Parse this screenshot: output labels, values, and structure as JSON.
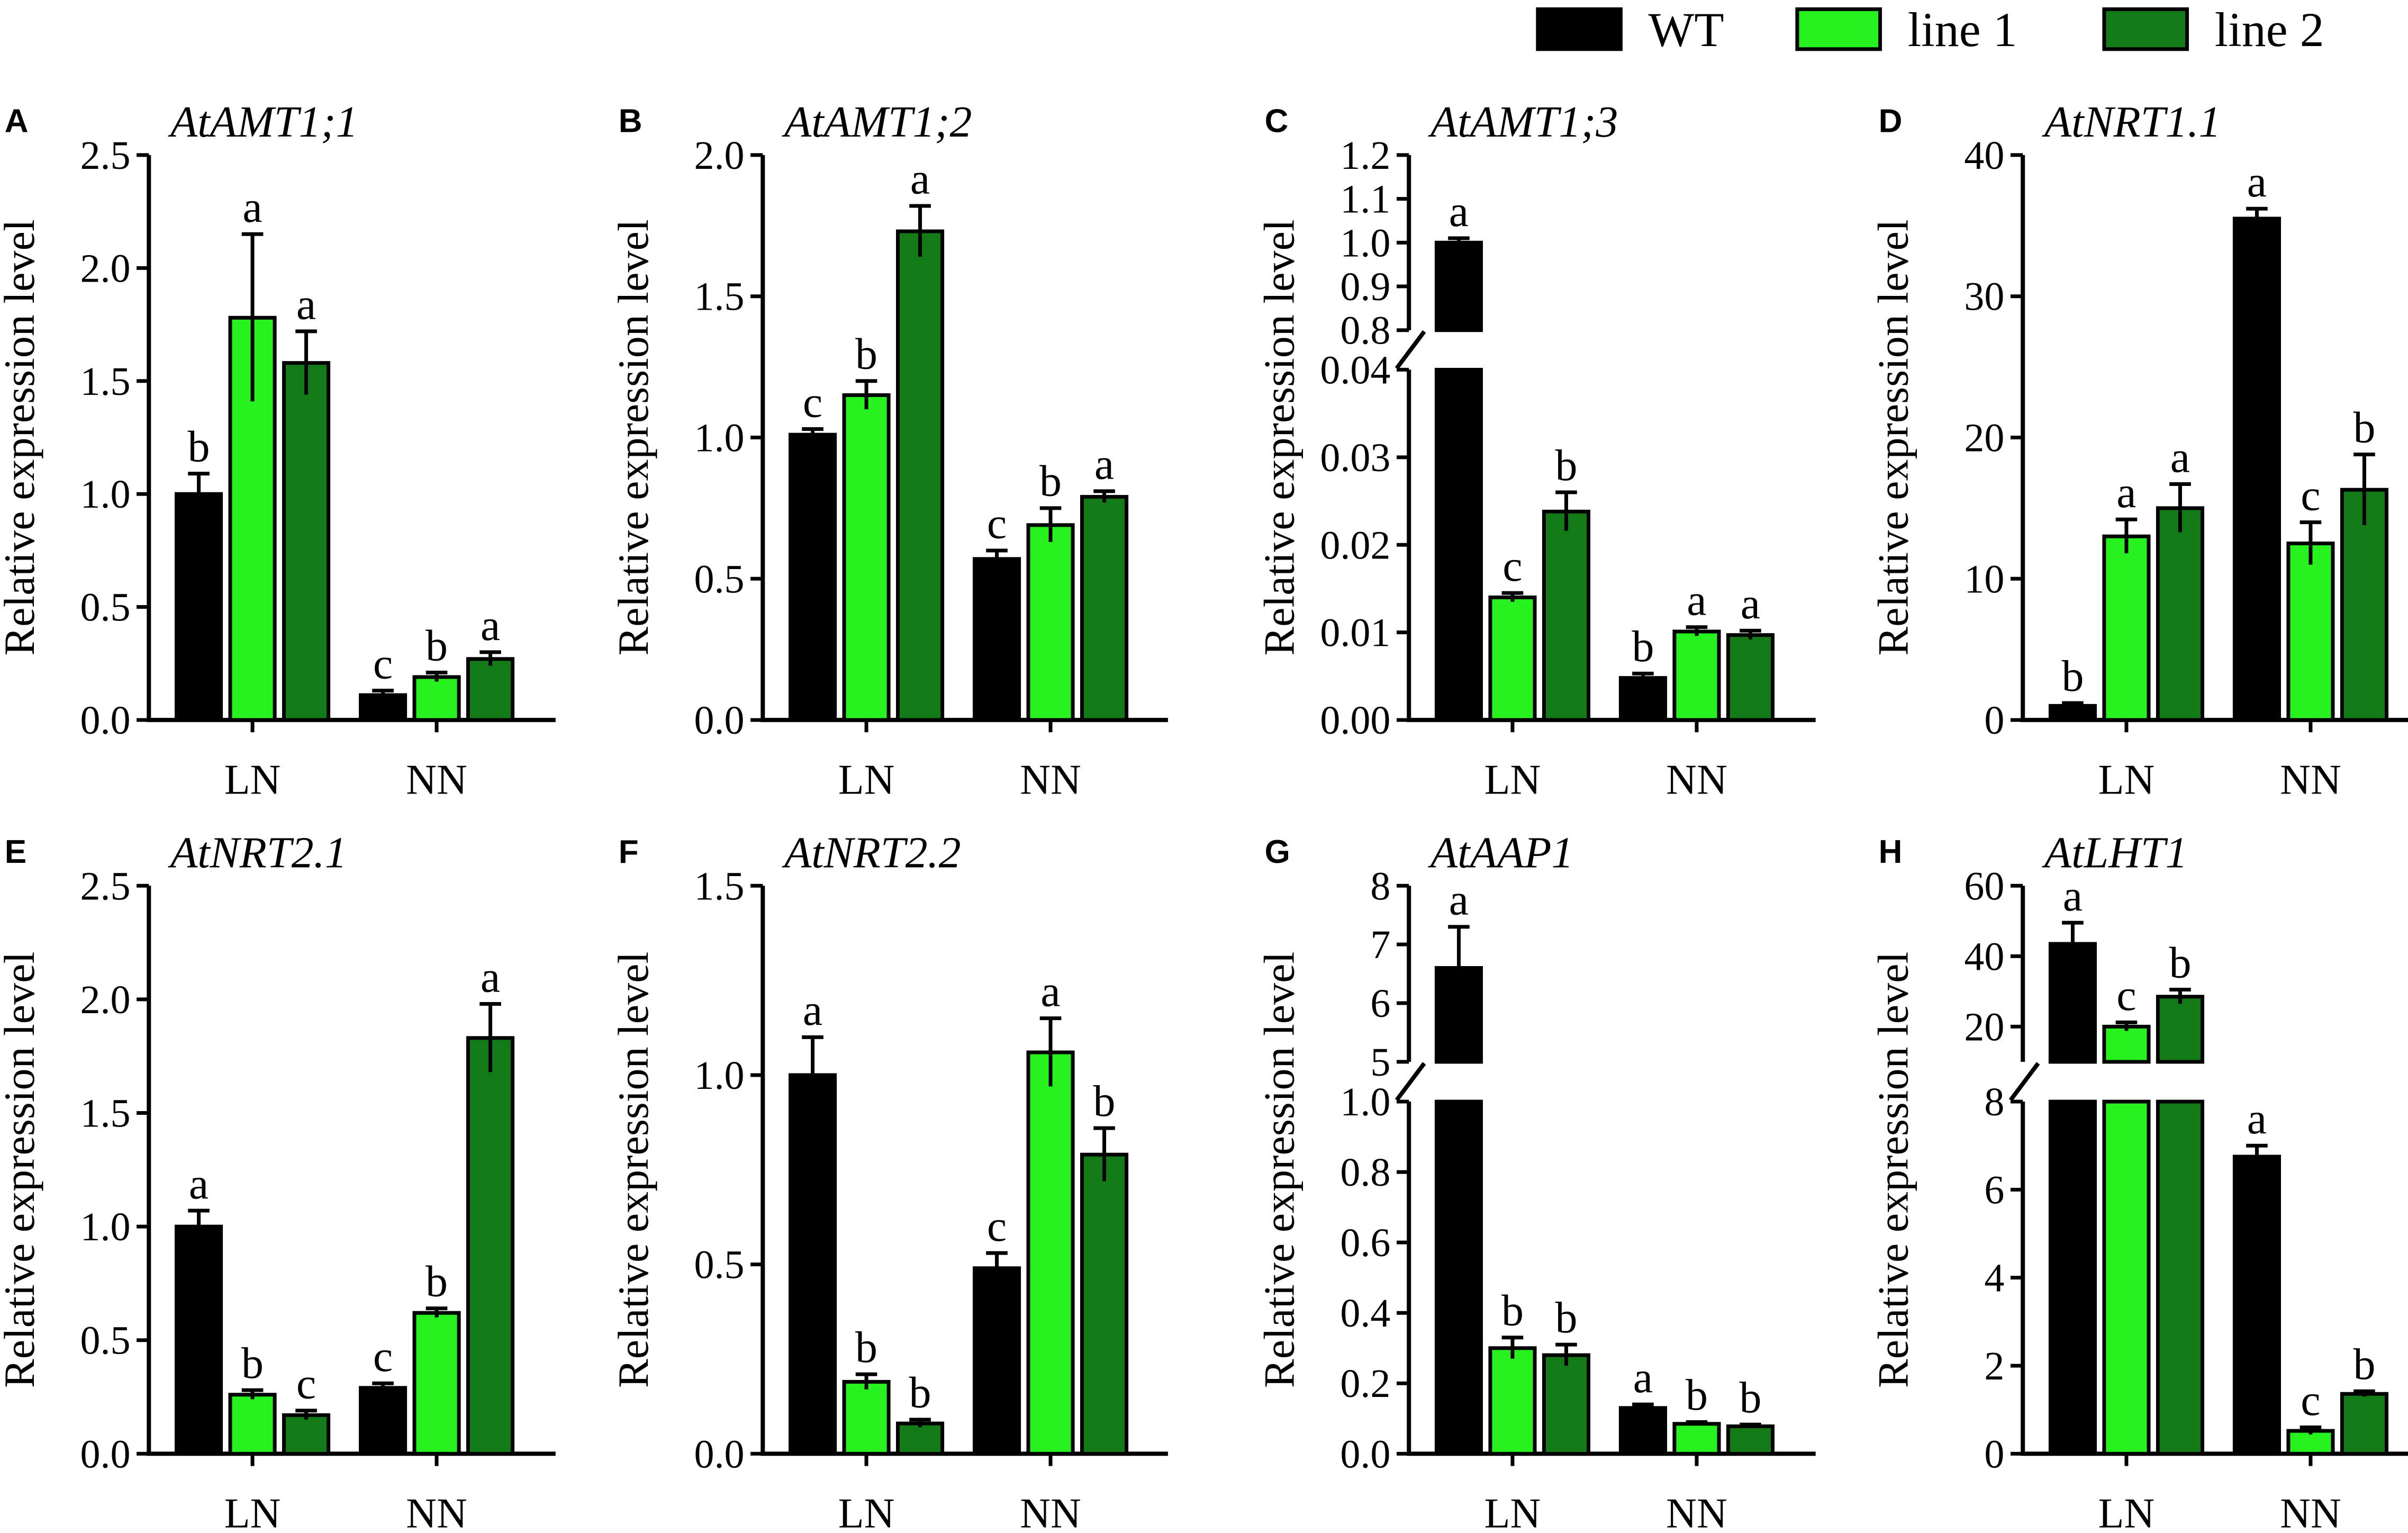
{
  "legend": [
    {
      "label": "WT",
      "color": "#000000"
    },
    {
      "label": "line 1",
      "color": "#27f21f"
    },
    {
      "label": "line 2",
      "color": "#137a18"
    }
  ],
  "chart_data": [
    {
      "panel": "A",
      "type": "bar",
      "title": "AtAMT1;1",
      "ylabel": "Relative expression level",
      "categories": [
        "LN",
        "NN"
      ],
      "ylim": [
        0,
        2.5
      ],
      "yticks": [
        "0.0",
        "0.5",
        "1.0",
        "1.5",
        "2.0",
        "2.5"
      ],
      "series": [
        {
          "name": "WT",
          "values": [
            1.0,
            0.11
          ],
          "errors": [
            0.09,
            0.02
          ],
          "letters": [
            "b",
            "c"
          ]
        },
        {
          "name": "line 1",
          "values": [
            1.78,
            0.19
          ],
          "errors": [
            0.37,
            0.02
          ],
          "letters": [
            "a",
            "b"
          ]
        },
        {
          "name": "line 2",
          "values": [
            1.58,
            0.27
          ],
          "errors": [
            0.14,
            0.03
          ],
          "letters": [
            "a",
            "a"
          ]
        }
      ]
    },
    {
      "panel": "B",
      "type": "bar",
      "title": "AtAMT1;2",
      "ylabel": "Relative expression level",
      "categories": [
        "LN",
        "NN"
      ],
      "ylim": [
        0,
        2.0
      ],
      "yticks": [
        "0.0",
        "0.5",
        "1.0",
        "1.5",
        "2.0"
      ],
      "series": [
        {
          "name": "WT",
          "values": [
            1.01,
            0.57
          ],
          "errors": [
            0.02,
            0.03
          ],
          "letters": [
            "c",
            "c"
          ]
        },
        {
          "name": "line 1",
          "values": [
            1.15,
            0.69
          ],
          "errors": [
            0.05,
            0.06
          ],
          "letters": [
            "b",
            "b"
          ]
        },
        {
          "name": "line 2",
          "values": [
            1.73,
            0.79
          ],
          "errors": [
            0.09,
            0.02
          ],
          "letters": [
            "a",
            "a"
          ]
        }
      ]
    },
    {
      "panel": "C",
      "type": "bar",
      "title": "AtAMT1;3",
      "ylabel": "Relative expression level",
      "categories": [
        "LN",
        "NN"
      ],
      "ylim": [
        0,
        1.2
      ],
      "axis_break": [
        0.04,
        0.8
      ],
      "yticks": [
        "0.00",
        "0.01",
        "0.02",
        "0.03",
        "0.04"
      ],
      "yticks_upper": [
        "0.8",
        "0.9",
        "1.0",
        "1.1",
        "1.2"
      ],
      "series": [
        {
          "name": "WT",
          "values": [
            1.0,
            0.0048
          ],
          "errors": [
            0.01,
            0.0005
          ],
          "letters": [
            "a",
            "b"
          ]
        },
        {
          "name": "line 1",
          "values": [
            0.014,
            0.0101
          ],
          "errors": [
            0.0005,
            0.0005
          ],
          "letters": [
            "c",
            "a"
          ]
        },
        {
          "name": "line 2",
          "values": [
            0.0238,
            0.0097
          ],
          "errors": [
            0.0022,
            0.0005
          ],
          "letters": [
            "b",
            "a"
          ]
        }
      ]
    },
    {
      "panel": "D",
      "type": "bar",
      "title": "AtNRT1.1",
      "ylabel": "Relative expression level",
      "categories": [
        "LN",
        "NN"
      ],
      "ylim": [
        0,
        40
      ],
      "yticks": [
        "0",
        "10",
        "20",
        "30",
        "40"
      ],
      "series": [
        {
          "name": "WT",
          "values": [
            1.0,
            35.5
          ],
          "errors": [
            0.2,
            0.7
          ],
          "letters": [
            "b",
            "a"
          ]
        },
        {
          "name": "line 1",
          "values": [
            13.0,
            12.5
          ],
          "errors": [
            1.2,
            1.5
          ],
          "letters": [
            "a",
            "c"
          ]
        },
        {
          "name": "line 2",
          "values": [
            15.0,
            16.3
          ],
          "errors": [
            1.7,
            2.5
          ],
          "letters": [
            "a",
            "b"
          ]
        }
      ]
    },
    {
      "panel": "E",
      "type": "bar",
      "title": "AtNRT2.1",
      "ylabel": "Relative expression level",
      "categories": [
        "LN",
        "NN"
      ],
      "ylim": [
        0,
        2.5
      ],
      "yticks": [
        "0.0",
        "0.5",
        "1.0",
        "1.5",
        "2.0",
        "2.5"
      ],
      "series": [
        {
          "name": "WT",
          "values": [
            1.0,
            0.29
          ],
          "errors": [
            0.07,
            0.02
          ],
          "letters": [
            "a",
            "c"
          ]
        },
        {
          "name": "line 1",
          "values": [
            0.26,
            0.62
          ],
          "errors": [
            0.02,
            0.02
          ],
          "letters": [
            "b",
            "b"
          ]
        },
        {
          "name": "line 2",
          "values": [
            0.17,
            1.83
          ],
          "errors": [
            0.02,
            0.15
          ],
          "letters": [
            "c",
            "a"
          ]
        }
      ]
    },
    {
      "panel": "F",
      "type": "bar",
      "title": "AtNRT2.2",
      "ylabel": "Relative expression level",
      "categories": [
        "LN",
        "NN"
      ],
      "ylim": [
        0,
        1.5
      ],
      "yticks": [
        "0.0",
        "0.5",
        "1.0",
        "1.5"
      ],
      "series": [
        {
          "name": "WT",
          "values": [
            1.0,
            0.49
          ],
          "errors": [
            0.1,
            0.04
          ],
          "letters": [
            "a",
            "c"
          ]
        },
        {
          "name": "line 1",
          "values": [
            0.19,
            1.06
          ],
          "errors": [
            0.02,
            0.09
          ],
          "letters": [
            "b",
            "a"
          ]
        },
        {
          "name": "line 2",
          "values": [
            0.08,
            0.79
          ],
          "errors": [
            0.01,
            0.07
          ],
          "letters": [
            "b",
            "b"
          ]
        }
      ]
    },
    {
      "panel": "G",
      "type": "bar",
      "title": "AtAAP1",
      "ylabel": "Relative expression level",
      "categories": [
        "LN",
        "NN"
      ],
      "ylim": [
        0,
        8
      ],
      "axis_break": [
        1.0,
        5
      ],
      "yticks": [
        "0.0",
        "0.2",
        "0.4",
        "0.6",
        "0.8",
        "1.0"
      ],
      "yticks_upper": [
        "5",
        "6",
        "7",
        "8"
      ],
      "series": [
        {
          "name": "WT",
          "values": [
            6.6,
            0.13
          ],
          "errors": [
            0.7,
            0.01
          ],
          "letters": [
            "a",
            "a"
          ]
        },
        {
          "name": "line 1",
          "values": [
            0.3,
            0.085
          ],
          "errors": [
            0.03,
            0.005
          ],
          "letters": [
            "b",
            "b"
          ]
        },
        {
          "name": "line 2",
          "values": [
            0.28,
            0.078
          ],
          "errors": [
            0.03,
            0.005
          ],
          "letters": [
            "b",
            "b"
          ]
        }
      ]
    },
    {
      "panel": "H",
      "type": "bar",
      "title": "AtLHT1",
      "ylabel": "Relative expression level",
      "categories": [
        "LN",
        "NN"
      ],
      "ylim": [
        0,
        60
      ],
      "axis_break": [
        8,
        10
      ],
      "yticks": [
        "0",
        "2",
        "4",
        "6",
        "8"
      ],
      "yticks_upper": [
        "20",
        "40",
        "60"
      ],
      "series": [
        {
          "name": "WT",
          "values": [
            43.5,
            6.75
          ],
          "errors": [
            6.0,
            0.25
          ],
          "letters": [
            "a",
            "a"
          ]
        },
        {
          "name": "line 1",
          "values": [
            20.0,
            0.52
          ],
          "errors": [
            1.2,
            0.08
          ],
          "letters": [
            "c",
            "c"
          ]
        },
        {
          "name": "line 2",
          "values": [
            28.5,
            1.36
          ],
          "errors": [
            2.0,
            0.06
          ],
          "letters": [
            "b",
            "b"
          ]
        }
      ]
    }
  ]
}
